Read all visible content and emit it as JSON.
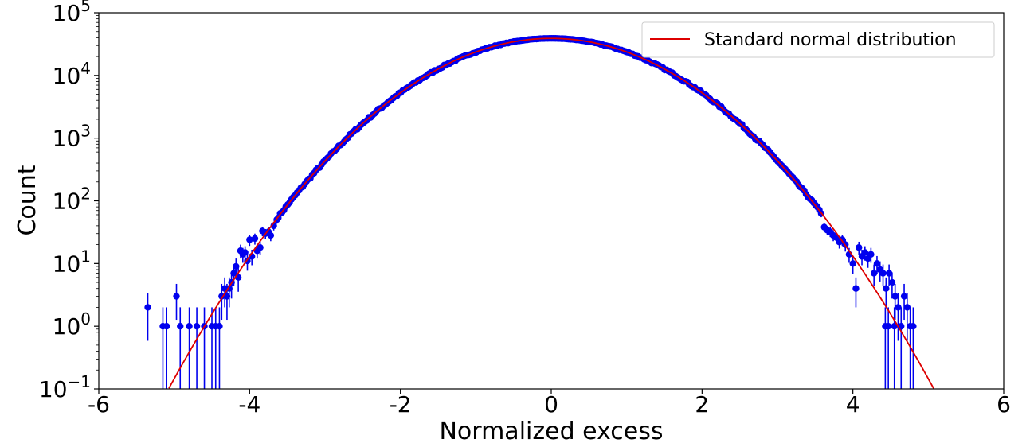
{
  "chart_data": {
    "type": "scatter",
    "xlabel": "Normalized excess",
    "ylabel": "Count",
    "xlim": [
      -6,
      6
    ],
    "ylim": [
      0.1,
      100000
    ],
    "y_scale": "log",
    "x_ticks": [
      {
        "value": -6,
        "label": "-6"
      },
      {
        "value": -4,
        "label": "-4"
      },
      {
        "value": -2,
        "label": "-2"
      },
      {
        "value": 0,
        "label": "0"
      },
      {
        "value": 2,
        "label": "2"
      },
      {
        "value": 4,
        "label": "4"
      },
      {
        "value": 6,
        "label": "6"
      }
    ],
    "y_ticks": [
      {
        "exp": -1,
        "base": "10",
        "sup": "−1"
      },
      {
        "exp": 0,
        "base": "10",
        "sup": "0"
      },
      {
        "exp": 1,
        "base": "10",
        "sup": "1"
      },
      {
        "exp": 2,
        "base": "10",
        "sup": "2"
      },
      {
        "exp": 3,
        "base": "10",
        "sup": "3"
      },
      {
        "exp": 4,
        "base": "10",
        "sup": "4"
      },
      {
        "exp": 5,
        "base": "10",
        "sup": "5"
      }
    ],
    "grid": false,
    "legend": {
      "position": "top-right",
      "entries": [
        {
          "label": "Standard normal distribution",
          "color": "#dd0000"
        }
      ]
    },
    "curve": {
      "name": "Standard normal distribution",
      "color": "#dd0000",
      "peak": 39000,
      "mean": 0,
      "sigma": 1
    },
    "points_color": "#0000ee",
    "tail_points": [
      [
        -5.35,
        2
      ],
      [
        -5.15,
        1
      ],
      [
        -5.1,
        1
      ],
      [
        -4.97,
        3
      ],
      [
        -4.92,
        1
      ],
      [
        -4.8,
        1
      ],
      [
        -4.7,
        1
      ],
      [
        -4.6,
        1
      ],
      [
        -4.5,
        1
      ],
      [
        -4.45,
        1
      ],
      [
        -4.4,
        1
      ],
      [
        -4.37,
        3
      ],
      [
        -4.33,
        4
      ],
      [
        -4.3,
        3
      ],
      [
        -4.27,
        4
      ],
      [
        -4.24,
        5
      ],
      [
        -4.21,
        7
      ],
      [
        -4.18,
        9
      ],
      [
        -4.15,
        6
      ],
      [
        -4.12,
        16
      ],
      [
        -4.09,
        14
      ],
      [
        -4.06,
        15
      ],
      [
        -4.03,
        11
      ],
      [
        -4.0,
        24
      ],
      [
        -3.97,
        13
      ],
      [
        -3.93,
        25
      ],
      [
        -3.9,
        16
      ],
      [
        -3.86,
        18
      ],
      [
        -3.83,
        33
      ],
      [
        -3.79,
        30
      ],
      [
        -3.75,
        32
      ],
      [
        -3.72,
        28
      ],
      [
        -3.68,
        40
      ],
      [
        -3.64,
        50
      ],
      [
        3.62,
        38
      ],
      [
        3.66,
        34
      ],
      [
        3.7,
        32
      ],
      [
        3.74,
        28
      ],
      [
        3.78,
        26
      ],
      [
        3.82,
        22
      ],
      [
        3.86,
        24
      ],
      [
        3.9,
        20
      ],
      [
        3.95,
        14
      ],
      [
        4.0,
        10
      ],
      [
        4.04,
        4
      ],
      [
        4.08,
        18
      ],
      [
        4.12,
        13
      ],
      [
        4.16,
        15
      ],
      [
        4.2,
        12
      ],
      [
        4.24,
        14
      ],
      [
        4.28,
        7
      ],
      [
        4.32,
        10
      ],
      [
        4.36,
        8
      ],
      [
        4.4,
        7
      ],
      [
        4.44,
        4
      ],
      [
        4.48,
        7
      ],
      [
        4.52,
        5
      ],
      [
        4.56,
        3
      ],
      [
        4.6,
        2
      ],
      [
        4.64,
        1
      ],
      [
        4.68,
        3
      ],
      [
        4.72,
        2
      ],
      [
        4.76,
        1
      ],
      [
        4.8,
        1
      ],
      [
        4.47,
        1
      ],
      [
        4.43,
        1
      ],
      [
        4.55,
        1
      ]
    ]
  }
}
